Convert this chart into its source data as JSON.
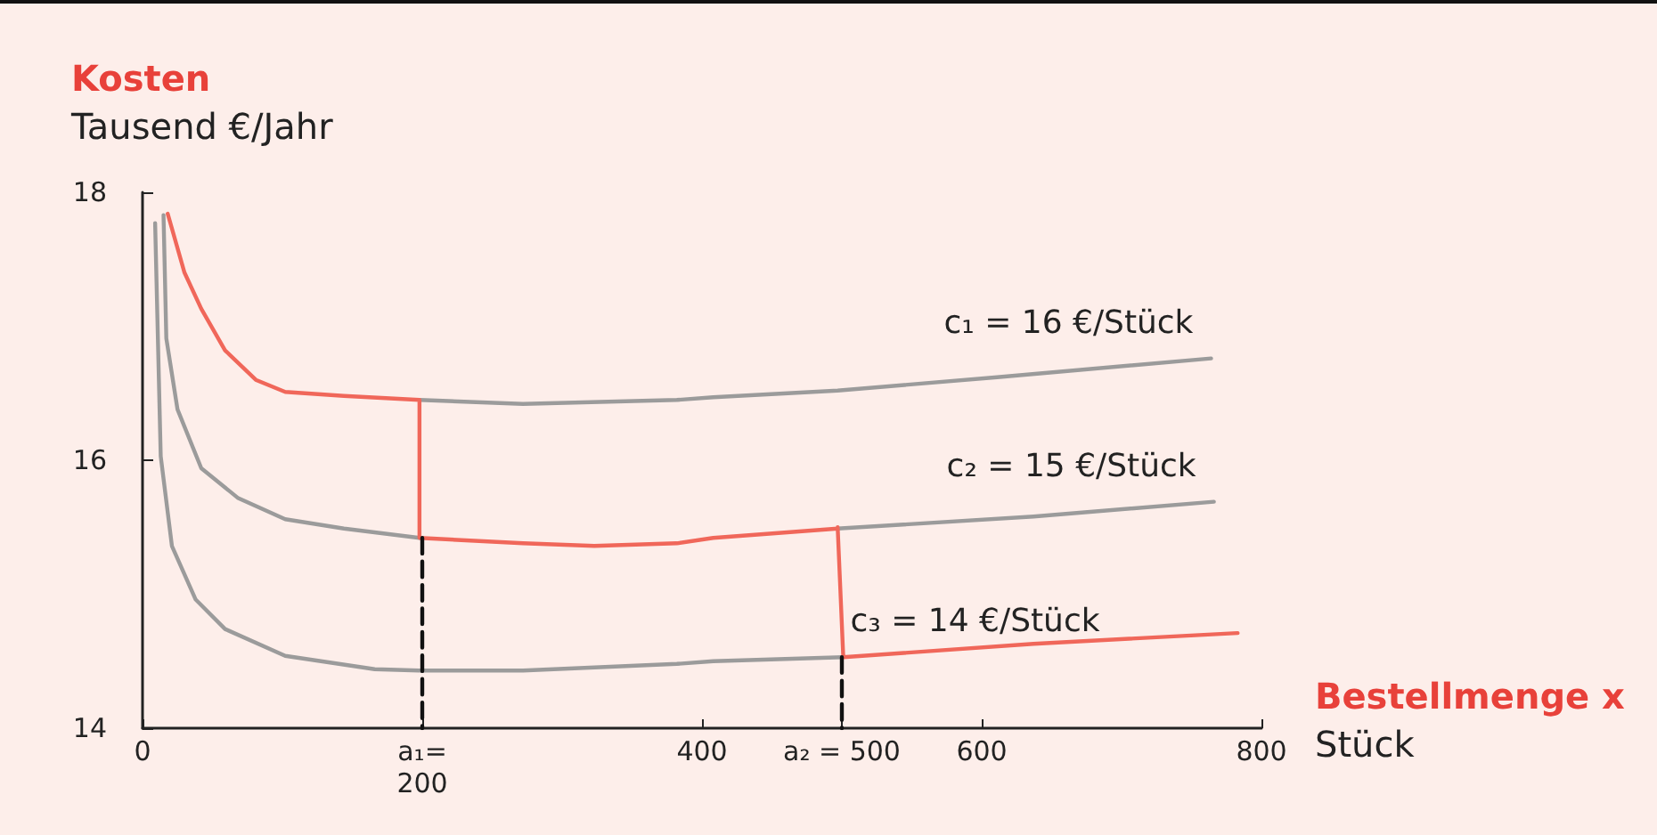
{
  "chart_data": {
    "type": "line",
    "xlabel": "Bestellmenge x\nStück",
    "ylabel": "Kosten\nTausend €/Jahr",
    "xlim": [
      0,
      800
    ],
    "ylim": [
      14,
      18
    ],
    "xticks": [
      0,
      {
        "value": 200,
        "label": "a₁=\n200"
      },
      400,
      {
        "value": 500,
        "label": "a₂ = 500"
      },
      600,
      800
    ],
    "yticks": [
      14,
      16,
      18
    ],
    "grid": false,
    "legend": false,
    "marker": "none",
    "series": [
      {
        "name": "c₁ = 16 €/Stück",
        "color": "#9b9b9b",
        "x": [
          198,
          272,
          382,
          408,
          497,
          611,
          764
        ],
        "values": [
          16.45,
          16.42,
          16.45,
          16.47,
          16.52,
          16.62,
          16.76
        ]
      },
      {
        "name": "c₂ = 15 €/Stück",
        "color": "#9b9b9b",
        "x": [
          15,
          17,
          25,
          42,
          68,
          102,
          144,
          198,
          350,
          497,
          637,
          766
        ],
        "values": [
          17.83,
          16.91,
          16.38,
          15.94,
          15.72,
          15.56,
          15.49,
          15.42,
          null,
          15.49,
          15.58,
          15.69
        ]
      },
      {
        "name": "c₃ = 14 €/Stück",
        "color": "#9b9b9b",
        "x": [
          9,
          13,
          21,
          38,
          59,
          102,
          166,
          198,
          272,
          382,
          408,
          501
        ],
        "values": [
          17.77,
          16.03,
          15.36,
          14.96,
          14.74,
          14.54,
          14.44,
          14.43,
          14.43,
          14.48,
          14.5,
          14.53
        ]
      },
      {
        "color": "#f0675a",
        "x": [
          18,
          30,
          42,
          59,
          81,
          102,
          144,
          198,
          198,
          272,
          323,
          382,
          408,
          497,
          497,
          501,
          637,
          783
        ],
        "values": [
          17.84,
          17.4,
          17.13,
          16.82,
          16.6,
          16.51,
          16.48,
          16.45,
          15.42,
          15.38,
          15.36,
          15.38,
          15.42,
          15.49,
          15.5,
          14.53,
          14.63,
          14.71
        ]
      },
      {
        "color": "#111111",
        "line_style": "dashed",
        "x": [
          200,
          200
        ],
        "values": [
          15.42,
          14
        ]
      },
      {
        "color": "#111111",
        "line_style": "dashed",
        "x": [
          500,
          500
        ],
        "values": [
          14.53,
          14
        ]
      }
    ]
  }
}
